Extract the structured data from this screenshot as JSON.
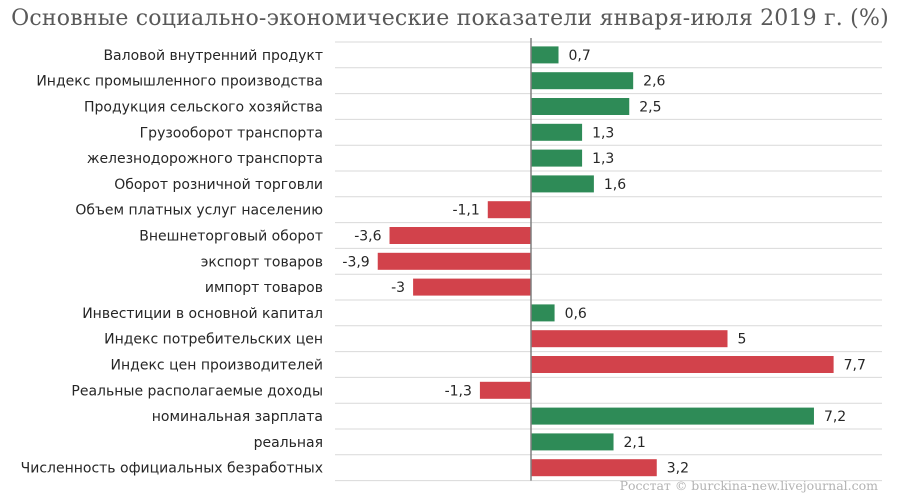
{
  "source_note": "Росстат © burckina-new.livejournal.com",
  "colors": {
    "positive": "#2e8b57",
    "negative": "#d2424b",
    "grid": "#d9d9d9",
    "axis": "#808080"
  },
  "chart_data": {
    "type": "bar",
    "orientation": "horizontal",
    "title": "Основные социально-экономические показатели января-июля 2019 г. (%)",
    "categories": [
      "Валовой внутренний продукт",
      "Индекс промышленного производства",
      "Продукция сельского хозяйства",
      "Грузооборот транспорта",
      "железнодорожного транспорта",
      "Оборот розничной торговли",
      "Объем платных услуг населению",
      "Внешнеторговый оборот",
      "экспорт товаров",
      "импорт товаров",
      "Инвестиции в основной капитал",
      "Индекс потребительских цен",
      "Индекс цен производителей",
      "Реальные располагаемые доходы",
      "номинальная зарплата",
      "реальная",
      "Численность официальных безработных"
    ],
    "values": [
      0.7,
      2.6,
      2.5,
      1.3,
      1.3,
      1.6,
      -1.1,
      -3.6,
      -3.9,
      -3,
      0.6,
      5,
      7.7,
      -1.3,
      7.2,
      2.1,
      3.2
    ],
    "value_labels": [
      "0,7",
      "2,6",
      "2,5",
      "1,3",
      "1,3",
      "1,6",
      "-1,1",
      "-3,6",
      "-3,9",
      "-3",
      "0,6",
      "5",
      "7,7",
      "-1,3",
      "7,2",
      "2,1",
      "3,2"
    ],
    "bar_colors": [
      "positive",
      "positive",
      "positive",
      "positive",
      "positive",
      "positive",
      "negative",
      "negative",
      "negative",
      "negative",
      "positive",
      "negative",
      "negative",
      "negative",
      "positive",
      "positive",
      "negative"
    ],
    "xlim": [
      -4,
      8.8
    ],
    "grid": true,
    "legend": "none"
  }
}
